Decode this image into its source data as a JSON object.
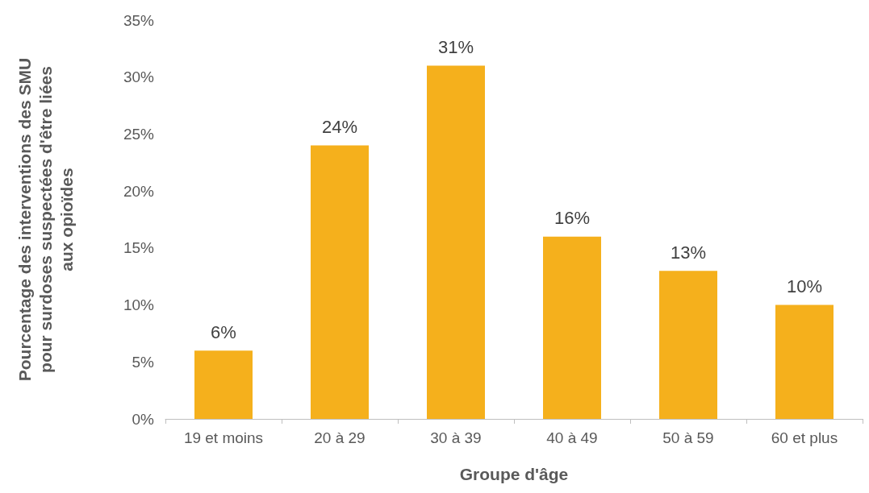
{
  "chart_data": {
    "type": "bar",
    "xlabel": "Groupe d'âge",
    "ylabel": "Pourcentage des interventions des SMU pour surdoses suspectées d'être liées aux opioïdes",
    "categories": [
      "19 et moins",
      "20 à 29",
      "30 à 39",
      "40 à 49",
      "50 à 59",
      "60 et plus"
    ],
    "values": [
      6,
      24,
      31,
      16,
      13,
      10
    ],
    "color": "#f5b01c",
    "value_labels": [
      "6%",
      "24%",
      "31%",
      "16%",
      "13%",
      "10%"
    ],
    "ylim": [
      0,
      35
    ],
    "yticks": [
      {
        "value": 0,
        "label": "0%"
      },
      {
        "value": 5,
        "label": "5%"
      },
      {
        "value": 10,
        "label": "10%"
      },
      {
        "value": 15,
        "label": "15%"
      },
      {
        "value": 20,
        "label": "20%"
      },
      {
        "value": 25,
        "label": "25%"
      },
      {
        "value": 30,
        "label": "30%"
      },
      {
        "value": 35,
        "label": "35%"
      }
    ],
    "grid": false
  }
}
